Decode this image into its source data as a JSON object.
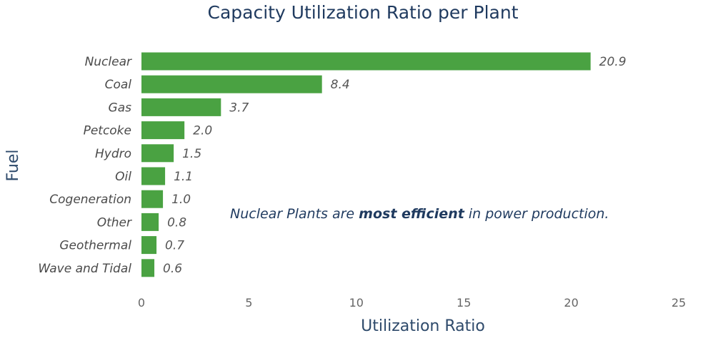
{
  "chart_data": {
    "type": "bar",
    "orientation": "horizontal",
    "title": "Capacity Utilization Ratio per Plant",
    "xlabel": "Utilization Ratio",
    "ylabel": "Fuel",
    "categories": [
      "Nuclear",
      "Coal",
      "Gas",
      "Petcoke",
      "Hydro",
      "Oil",
      "Cogeneration",
      "Other",
      "Geothermal",
      "Wave and Tidal"
    ],
    "values": [
      20.9,
      8.4,
      3.7,
      2.0,
      1.5,
      1.1,
      1.0,
      0.8,
      0.7,
      0.6
    ],
    "value_labels": [
      "20.9",
      "8.4",
      "3.7",
      "2.0",
      "1.5",
      "1.1",
      "1.0",
      "0.8",
      "0.7",
      "0.6"
    ],
    "xlim": [
      0,
      25
    ],
    "xticks": [
      0,
      5,
      10,
      15,
      20,
      25
    ],
    "grid": false,
    "bar_color": "#4aa242",
    "annotation": {
      "prefix": "Nuclear Plants are ",
      "emphasis": "most efficient",
      "suffix": " in power production."
    }
  }
}
